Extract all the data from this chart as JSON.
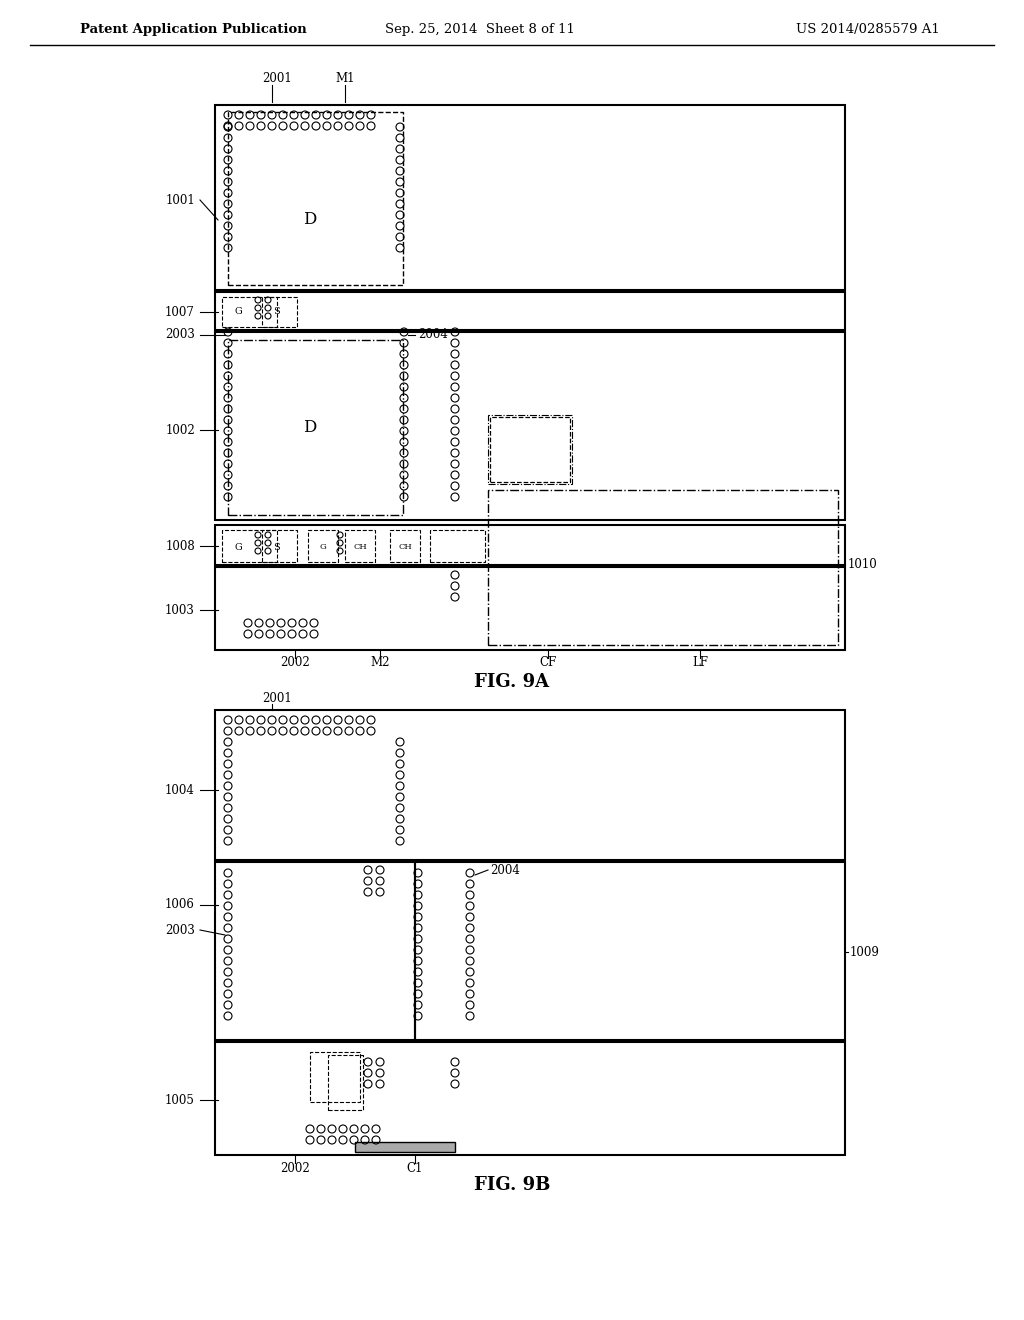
{
  "header_left": "Patent Application Publication",
  "header_mid": "Sep. 25, 2014  Sheet 8 of 11",
  "header_right": "US 2014/0285579 A1",
  "fig9a_label": "FIG. 9A",
  "fig9b_label": "FIG. 9B",
  "bg_color": "#ffffff",
  "line_color": "#000000"
}
